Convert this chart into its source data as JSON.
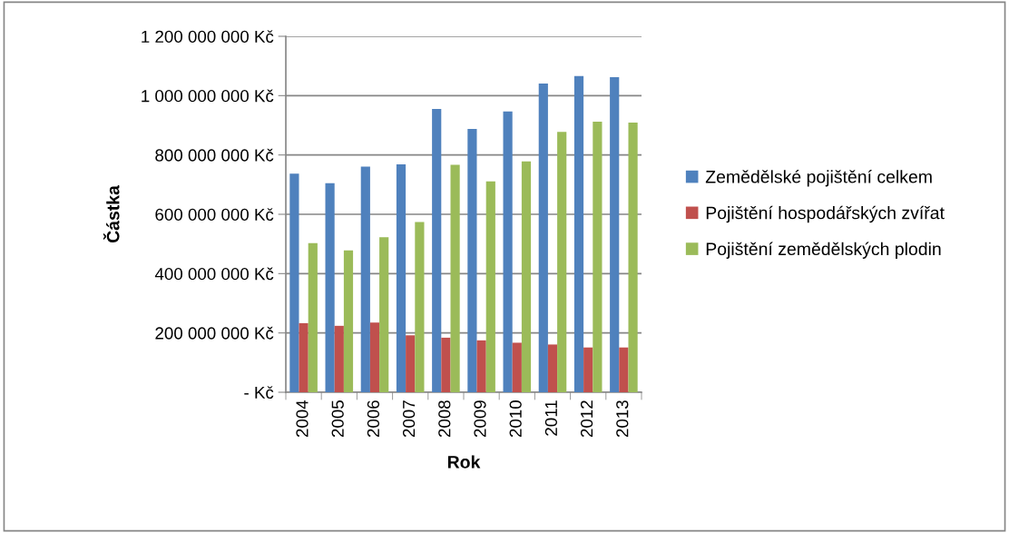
{
  "chart_data": {
    "type": "bar",
    "xlabel": "Rok",
    "ylabel": "Částka",
    "categories": [
      "2004",
      "2005",
      "2006",
      "2007",
      "2008",
      "2009",
      "2010",
      "2011",
      "2012",
      "2013"
    ],
    "series": [
      {
        "name": "Zemědělské pojištění celkem",
        "color": "#4f81bd",
        "values": [
          737000000,
          705000000,
          761000000,
          768000000,
          955000000,
          888000000,
          947000000,
          1041000000,
          1066000000,
          1062000000
        ]
      },
      {
        "name": "Pojištění hospodářských zvířat",
        "color": "#c0504d",
        "values": [
          233000000,
          224000000,
          235000000,
          192000000,
          184000000,
          175000000,
          167000000,
          161000000,
          151000000,
          151000000
        ]
      },
      {
        "name": "Pojištění zemědělských plodin",
        "color": "#9bbb59",
        "values": [
          503000000,
          478000000,
          523000000,
          574000000,
          767000000,
          711000000,
          778000000,
          878000000,
          912000000,
          909000000
        ]
      }
    ],
    "ylim": [
      0,
      1200000000
    ],
    "yticks": [
      {
        "value": 0,
        "label": "- Kč"
      },
      {
        "value": 200000000,
        "label": "200 000 000 Kč"
      },
      {
        "value": 400000000,
        "label": "400 000 000 Kč"
      },
      {
        "value": 600000000,
        "label": "600 000 000 Kč"
      },
      {
        "value": 800000000,
        "label": "800 000 000 Kč"
      },
      {
        "value": 1000000000,
        "label": "1 000 000 000 Kč"
      },
      {
        "value": 1200000000,
        "label": "1 200 000 000 Kč"
      }
    ],
    "grid": "y",
    "legend": "right"
  }
}
